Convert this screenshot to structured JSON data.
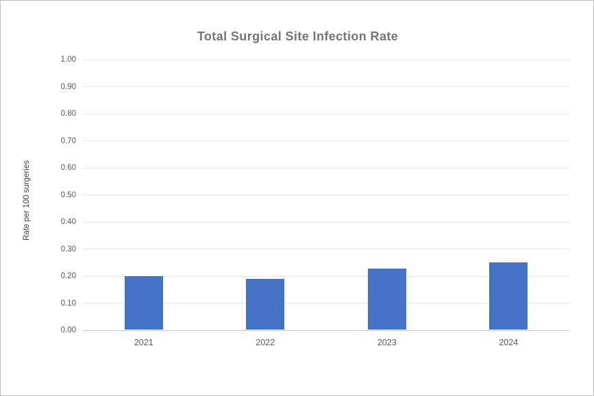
{
  "chart_data": {
    "type": "bar",
    "title": "Total Surgical Site Infection Rate",
    "xlabel": "",
    "ylabel": "Rate per 100 surgeries",
    "categories": [
      "2021",
      "2022",
      "2023",
      "2024"
    ],
    "values": [
      0.197,
      0.187,
      0.226,
      0.249
    ],
    "ylim": [
      0,
      1.0
    ],
    "ytick_step": 0.1,
    "ytick_decimals": 2,
    "grid": true,
    "legend_position": "none",
    "bar_color": "#4472c4"
  },
  "colors": {
    "bar": "#4472c4",
    "title_text": "#757575",
    "tick_text": "#595959",
    "gridline": "#e6e6e6",
    "axis_line": "#c9c9c9",
    "canvas_border": "#bdbdbd",
    "background": "#ffffff"
  }
}
